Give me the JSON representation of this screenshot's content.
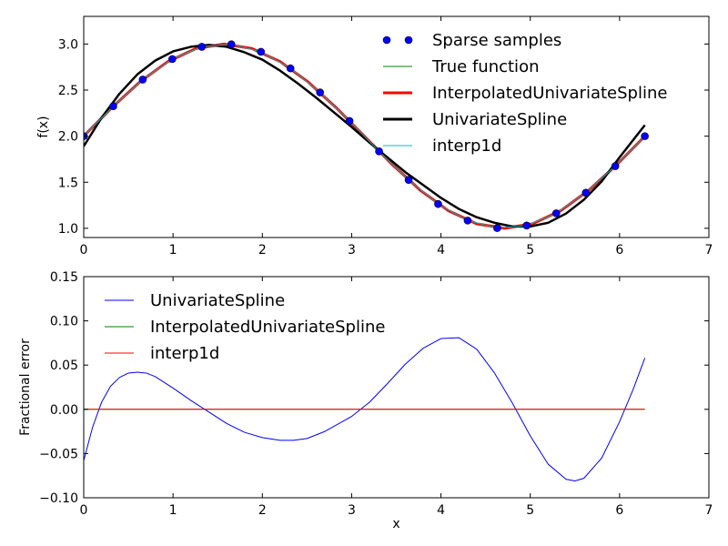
{
  "chart_data": [
    {
      "type": "line",
      "xlim": [
        0,
        7
      ],
      "ylim": [
        0.9,
        3.3
      ],
      "xticks": [
        "0",
        "1",
        "2",
        "3",
        "4",
        "5",
        "6",
        "7"
      ],
      "yticks": [
        "1.0",
        "1.5",
        "2.0",
        "2.5",
        "3.0"
      ],
      "xlabel": "",
      "ylabel": "f(x)",
      "legend_position": "top-right",
      "series": [
        {
          "name": "Sparse samples",
          "style": "markers",
          "color": "#0000ff",
          "x": [
            0.0,
            0.331,
            0.661,
            0.992,
            1.323,
            1.653,
            1.984,
            2.315,
            2.646,
            2.976,
            3.307,
            3.638,
            3.968,
            4.299,
            4.63,
            4.96,
            5.291,
            5.622,
            5.952,
            6.283
          ],
          "y": [
            2.0,
            2.325,
            2.614,
            2.837,
            2.97,
            2.997,
            2.916,
            2.736,
            2.475,
            2.165,
            1.835,
            1.525,
            1.264,
            1.084,
            1.003,
            1.03,
            1.163,
            1.386,
            1.675,
            2.0
          ]
        },
        {
          "name": "True function",
          "style": "line",
          "color": "#008000",
          "x": [
            0.0,
            0.314,
            0.628,
            0.942,
            1.257,
            1.571,
            1.885,
            2.199,
            2.513,
            2.827,
            3.142,
            3.456,
            3.77,
            4.084,
            4.398,
            4.712,
            5.027,
            5.341,
            5.655,
            5.969,
            6.283
          ],
          "y": [
            2.0,
            2.309,
            2.588,
            2.809,
            2.951,
            3.0,
            2.951,
            2.809,
            2.588,
            2.309,
            2.0,
            1.691,
            1.412,
            1.191,
            1.049,
            1.0,
            1.049,
            1.191,
            1.412,
            1.691,
            2.0
          ]
        },
        {
          "name": "InterpolatedUnivariateSpline",
          "style": "line",
          "color": "#ff0000",
          "x": [
            0.0,
            0.314,
            0.628,
            0.942,
            1.257,
            1.571,
            1.885,
            2.199,
            2.513,
            2.827,
            3.142,
            3.456,
            3.77,
            4.084,
            4.398,
            4.712,
            5.027,
            5.341,
            5.655,
            5.969,
            6.283
          ],
          "y": [
            2.0,
            2.309,
            2.588,
            2.809,
            2.951,
            3.0,
            2.951,
            2.809,
            2.588,
            2.309,
            2.0,
            1.691,
            1.412,
            1.191,
            1.049,
            1.0,
            1.049,
            1.191,
            1.412,
            1.691,
            2.0
          ]
        },
        {
          "name": "UnivariateSpline",
          "style": "line",
          "color": "#000000",
          "x": [
            0.0,
            0.2,
            0.4,
            0.6,
            0.8,
            1.0,
            1.2,
            1.4,
            1.6,
            1.8,
            2.0,
            2.2,
            2.4,
            2.6,
            2.8,
            3.0,
            3.2,
            3.4,
            3.6,
            3.8,
            4.0,
            4.2,
            4.4,
            4.6,
            4.8,
            5.0,
            5.2,
            5.4,
            5.6,
            5.8,
            6.0,
            6.283
          ],
          "y": [
            1.89,
            2.2,
            2.46,
            2.67,
            2.82,
            2.92,
            2.97,
            2.99,
            2.97,
            2.91,
            2.83,
            2.71,
            2.57,
            2.42,
            2.26,
            2.1,
            1.93,
            1.77,
            1.61,
            1.47,
            1.33,
            1.21,
            1.12,
            1.06,
            1.02,
            1.02,
            1.06,
            1.16,
            1.31,
            1.51,
            1.77,
            2.12
          ]
        },
        {
          "name": "interp1d",
          "style": "line",
          "color": "#00bfbf",
          "x": [
            0.0,
            0.331,
            0.661,
            0.992,
            1.323,
            1.653,
            1.984,
            2.315,
            2.646,
            2.976,
            3.307,
            3.638,
            3.968,
            4.299,
            4.63,
            4.96,
            5.291,
            5.622,
            5.952,
            6.283
          ],
          "y": [
            2.0,
            2.325,
            2.614,
            2.837,
            2.97,
            2.997,
            2.916,
            2.736,
            2.475,
            2.165,
            1.835,
            1.525,
            1.264,
            1.084,
            1.003,
            1.03,
            1.163,
            1.386,
            1.675,
            2.0
          ]
        }
      ]
    },
    {
      "type": "line",
      "xlim": [
        0,
        7
      ],
      "ylim": [
        -0.1,
        0.15
      ],
      "xticks": [
        "0",
        "1",
        "2",
        "3",
        "4",
        "5",
        "6",
        "7"
      ],
      "yticks": [
        "−0.10",
        "−0.05",
        "0.00",
        "0.05",
        "0.10",
        "0.15"
      ],
      "xlabel": "x",
      "ylabel": "Fractional error",
      "legend_position": "top-left",
      "series": [
        {
          "name": "UnivariateSpline",
          "color": "#0000ff",
          "x": [
            0.0,
            0.1,
            0.2,
            0.3,
            0.4,
            0.5,
            0.6,
            0.7,
            0.8,
            1.0,
            1.2,
            1.4,
            1.6,
            1.8,
            2.0,
            2.2,
            2.35,
            2.5,
            2.7,
            3.0,
            3.2,
            3.4,
            3.6,
            3.8,
            4.0,
            4.2,
            4.4,
            4.6,
            4.8,
            5.0,
            5.2,
            5.4,
            5.5,
            5.6,
            5.8,
            6.0,
            6.15,
            6.283
          ],
          "y": [
            -0.058,
            -0.02,
            0.008,
            0.026,
            0.036,
            0.041,
            0.042,
            0.041,
            0.037,
            0.024,
            0.01,
            -0.003,
            -0.016,
            -0.026,
            -0.032,
            -0.035,
            -0.035,
            -0.033,
            -0.025,
            -0.008,
            0.008,
            0.029,
            0.051,
            0.069,
            0.08,
            0.081,
            0.068,
            0.041,
            0.007,
            -0.03,
            -0.062,
            -0.079,
            -0.081,
            -0.078,
            -0.055,
            -0.014,
            0.022,
            0.058
          ]
        },
        {
          "name": "InterpolatedUnivariateSpline",
          "color": "#008000",
          "x": [
            0.0,
            6.283
          ],
          "y": [
            0.0,
            0.0
          ]
        },
        {
          "name": "interp1d",
          "color": "#ff0000",
          "x": [
            0.0,
            6.283
          ],
          "y": [
            0.0,
            0.0
          ]
        }
      ]
    }
  ]
}
